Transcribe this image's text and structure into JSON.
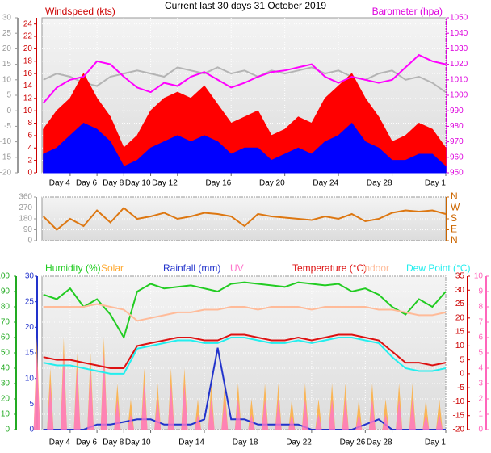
{
  "chart_data": [
    {
      "type": "line",
      "title": "Current last 30 days 31 October 2019",
      "y_label": "Windspeed (kts)",
      "y2_label": "Barometer (hpa)",
      "grid": true,
      "x": [
        2,
        3,
        4,
        5,
        6,
        7,
        8,
        9,
        10,
        11,
        12,
        13,
        14,
        15,
        16,
        17,
        18,
        19,
        20,
        21,
        22,
        23,
        24,
        25,
        26,
        27,
        28,
        29,
        30,
        31,
        32
      ],
      "xlim": [
        1.9,
        32
      ],
      "xticks": [
        {
          "value": 4,
          "label": "Day 4"
        },
        {
          "value": 6,
          "label": "Day 6"
        },
        {
          "value": 8,
          "label": "Day 8"
        },
        {
          "value": 10,
          "label": "Day 10"
        },
        {
          "value": 12,
          "label": "Day 12"
        },
        {
          "value": 16,
          "label": "Day 16"
        },
        {
          "value": 20,
          "label": "Day 20"
        },
        {
          "value": 24,
          "label": "Day 24"
        },
        {
          "value": 28,
          "label": "Day 28"
        },
        {
          "value": 32,
          "label": "Day 1"
        }
      ],
      "ylim": [
        0,
        25
      ],
      "yticks": [
        0,
        2,
        4,
        6,
        8,
        10,
        12,
        14,
        16,
        18,
        20,
        22,
        24
      ],
      "y2lim": [
        950,
        1050
      ],
      "y2ticks": [
        950,
        960,
        970,
        980,
        990,
        1000,
        1010,
        1020,
        1030,
        1040,
        1050
      ],
      "y3lim": [
        -20,
        30
      ],
      "y3ticks": [
        -20,
        -15,
        -10,
        -5,
        0,
        5,
        10,
        15,
        20,
        25,
        30
      ],
      "series": [
        {
          "axis": "y3",
          "style": "line",
          "color": "#b4b4b4",
          "values": [
            10,
            12,
            11,
            9,
            8,
            11,
            12,
            13,
            12,
            11,
            14,
            13,
            12,
            14,
            12,
            13,
            11,
            13,
            12,
            13,
            14,
            12,
            13,
            11,
            10,
            12,
            13,
            10,
            11,
            9,
            6
          ]
        },
        {
          "axis": "y",
          "style": "area",
          "color": "#ff0000",
          "values": [
            7,
            10,
            12,
            16,
            12,
            9,
            4,
            6,
            10,
            12,
            13,
            12,
            14,
            11,
            8,
            9,
            10,
            6,
            7,
            9,
            8,
            12,
            14,
            16,
            12,
            9,
            5,
            6,
            8,
            7,
            4
          ]
        },
        {
          "axis": "y",
          "style": "area",
          "color": "#0000ff",
          "values": [
            3,
            4,
            6,
            8,
            7,
            5,
            1,
            2,
            4,
            5,
            6,
            5,
            6,
            5,
            3,
            4,
            4,
            2,
            3,
            4,
            3,
            5,
            6,
            8,
            5,
            4,
            2,
            2,
            3,
            3,
            1
          ]
        },
        {
          "axis": "y2",
          "style": "line",
          "color": "#ff00ff",
          "values": [
            995,
            1005,
            1010,
            1012,
            1022,
            1020,
            1012,
            1005,
            1002,
            1008,
            1006,
            1012,
            1015,
            1010,
            1005,
            1008,
            1012,
            1015,
            1016,
            1018,
            1020,
            1012,
            1008,
            1012,
            1010,
            1008,
            1010,
            1018,
            1026,
            1022,
            1020
          ]
        }
      ]
    },
    {
      "type": "line",
      "grid": true,
      "x": [
        2,
        3,
        4,
        5,
        6,
        7,
        8,
        9,
        10,
        11,
        12,
        13,
        14,
        15,
        16,
        17,
        18,
        19,
        20,
        21,
        22,
        23,
        24,
        25,
        26,
        27,
        28,
        29,
        30,
        31,
        32
      ],
      "xlim": [
        1.9,
        32
      ],
      "ylim": [
        0,
        360
      ],
      "yticks": [
        0,
        90,
        180,
        270,
        360
      ],
      "y2lim": [
        0,
        360
      ],
      "y2ticks": [
        {
          "value": 0,
          "label": "N"
        },
        {
          "value": 90,
          "label": "E"
        },
        {
          "value": 180,
          "label": "S"
        },
        {
          "value": 270,
          "label": "W"
        },
        {
          "value": 360,
          "label": "N"
        }
      ],
      "series": [
        {
          "axis": "y",
          "style": "line",
          "color": "#dd7711",
          "values": [
            200,
            90,
            180,
            120,
            250,
            150,
            270,
            180,
            200,
            230,
            180,
            200,
            230,
            220,
            200,
            120,
            220,
            200,
            190,
            180,
            170,
            200,
            180,
            220,
            160,
            180,
            230,
            250,
            240,
            250,
            220
          ]
        }
      ]
    },
    {
      "type": "line",
      "grid": true,
      "x": [
        2,
        3,
        4,
        5,
        6,
        7,
        8,
        9,
        10,
        11,
        12,
        13,
        14,
        15,
        16,
        17,
        18,
        19,
        20,
        21,
        22,
        23,
        24,
        25,
        26,
        27,
        28,
        29,
        30,
        31,
        32
      ],
      "xlim": [
        1.9,
        32
      ],
      "xticks": [
        {
          "value": 4,
          "label": "Day 4"
        },
        {
          "value": 6,
          "label": "Day 6"
        },
        {
          "value": 8,
          "label": "Day 8"
        },
        {
          "value": 10,
          "label": "Day 10"
        },
        {
          "value": 14,
          "label": "Day 14"
        },
        {
          "value": 18,
          "label": "Day 18"
        },
        {
          "value": 22,
          "label": "Day 22"
        },
        {
          "value": 26,
          "label": "Day 26"
        },
        {
          "value": 28,
          "label": "Day 28"
        },
        {
          "value": 32,
          "label": "Day 1"
        }
      ],
      "ylim": [
        0,
        100
      ],
      "yticks": [
        0,
        10,
        20,
        30,
        40,
        50,
        60,
        70,
        80,
        90,
        100
      ],
      "y2lim": [
        -20,
        35
      ],
      "y2ticks": [
        -20,
        -15,
        -10,
        -5,
        0,
        5,
        10,
        15,
        20,
        25,
        30,
        35
      ],
      "y3lim": [
        0,
        30
      ],
      "y3ticks": [
        0,
        5,
        10,
        15,
        20,
        25,
        30
      ],
      "y4lim": [
        0,
        10
      ],
      "y4ticks": [
        0,
        1,
        2,
        3,
        4,
        5,
        6,
        7,
        8,
        9,
        10
      ],
      "series": [
        {
          "name": "Humidity (%)",
          "axis": "y",
          "style": "line",
          "color": "#22cc22",
          "values": [
            88,
            85,
            92,
            80,
            85,
            75,
            60,
            90,
            95,
            92,
            93,
            94,
            92,
            90,
            95,
            96,
            95,
            94,
            93,
            96,
            95,
            94,
            95,
            90,
            92,
            88,
            80,
            75,
            85,
            80,
            90
          ]
        },
        {
          "name": "Solar",
          "axis": "y4",
          "style": "spikes",
          "color": "#ffaa33",
          "values": [
            6,
            4,
            6,
            5,
            5,
            6,
            3,
            2,
            4,
            3,
            4,
            4,
            2,
            3,
            3,
            3,
            2,
            3,
            3,
            2,
            3,
            2,
            3,
            3,
            2,
            3,
            2,
            3,
            3,
            2,
            2
          ]
        },
        {
          "name": "Rainfall (mm)",
          "axis": "y3",
          "style": "line",
          "color": "#2233cc",
          "values": [
            0,
            0,
            0,
            0,
            1,
            1,
            1.5,
            2,
            2,
            1,
            1,
            1,
            2,
            16,
            2,
            2,
            1,
            1,
            1,
            1,
            0,
            0,
            0,
            0,
            1,
            2,
            0,
            0,
            0,
            0,
            0
          ]
        },
        {
          "name": "UV",
          "axis": "y4",
          "style": "spikes",
          "color": "#ff77cc",
          "values": [
            5,
            3,
            5,
            4,
            4,
            5,
            2,
            1,
            3,
            2,
            3,
            3,
            1,
            2,
            2,
            2,
            1,
            2,
            2,
            1,
            2,
            1,
            2,
            2,
            1,
            2,
            1,
            2,
            2,
            1,
            1
          ]
        },
        {
          "name": "Temperature (°C)",
          "axis": "y2",
          "style": "line",
          "color": "#dd1111",
          "values": [
            6,
            5,
            5,
            4,
            3,
            2,
            2,
            10,
            11,
            12,
            13,
            13,
            12,
            12,
            14,
            14,
            13,
            12,
            12,
            13,
            12,
            13,
            14,
            14,
            13,
            12,
            8,
            4,
            4,
            3,
            4
          ]
        },
        {
          "name": "Indoor",
          "axis": "y2",
          "style": "line",
          "color": "#ffbb99",
          "values": [
            24,
            24,
            24,
            24,
            25,
            24,
            23,
            19,
            20,
            21,
            22,
            22,
            23,
            23,
            24,
            24,
            23,
            24,
            24,
            24,
            23,
            24,
            24,
            24,
            24,
            23,
            23,
            22,
            21,
            21,
            22
          ]
        },
        {
          "name": "Dew Point (°C)",
          "axis": "y2",
          "style": "line",
          "color": "#22eeee",
          "values": [
            4,
            3,
            3,
            2,
            1,
            0,
            0,
            9,
            10,
            11,
            12,
            12,
            11,
            11,
            13,
            13,
            12,
            11,
            11,
            12,
            11,
            12,
            13,
            13,
            12,
            11,
            6,
            2,
            1,
            1,
            2
          ]
        }
      ]
    }
  ]
}
